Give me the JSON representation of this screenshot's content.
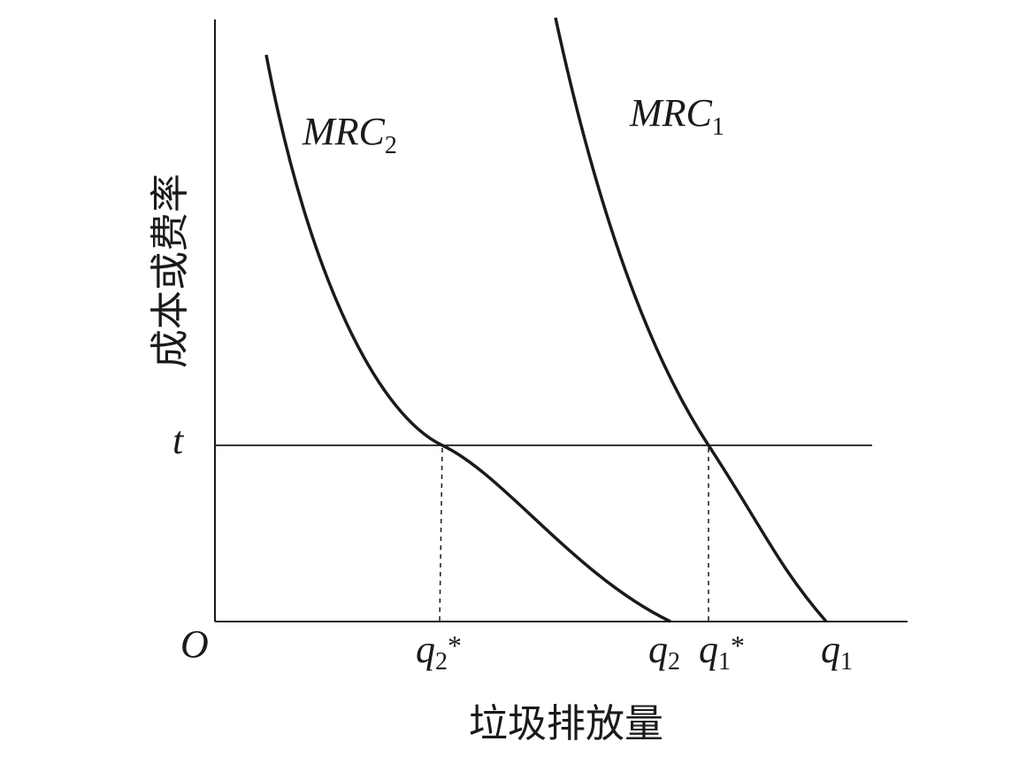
{
  "diagram": {
    "y_axis_label": "成本或费率",
    "x_axis_label": "垃圾排放量",
    "origin_label": "O",
    "tax_label": "t",
    "curves": [
      {
        "name_main": "MRC",
        "name_sub": "2"
      },
      {
        "name_main": "MRC",
        "name_sub": "1"
      }
    ],
    "x_ticks": [
      {
        "main": "q",
        "sub": "2",
        "star": "*"
      },
      {
        "main": "q",
        "sub": "2",
        "star": ""
      },
      {
        "main": "q",
        "sub": "1",
        "star": "*"
      },
      {
        "main": "q",
        "sub": "1",
        "star": ""
      }
    ],
    "colors": {
      "line": "#1a1a1a",
      "background": "#ffffff"
    }
  }
}
